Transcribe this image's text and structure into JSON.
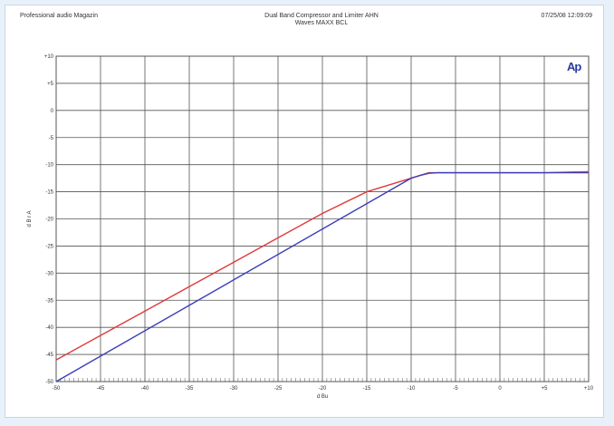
{
  "header": {
    "left": "Professional audio Magazin",
    "center_line1": "Dual Band Compressor and Limiter AHN",
    "center_line2": "Waves MAXX BCL",
    "right": "07/25/08 12:09:09",
    "logo": "Ap"
  },
  "colors": {
    "background": "#e8f1f9",
    "grid": "#555555",
    "series_red": "#e03a3a",
    "series_blue": "#3b3db8"
  },
  "chart_data": {
    "type": "line",
    "title": "Dual Band Compressor and Limiter AHN",
    "subtitle": "Waves MAXX BCL",
    "xlabel": "d Bu",
    "ylabel": "d B r A",
    "xlim": [
      -50,
      10
    ],
    "ylim": [
      -50,
      10
    ],
    "x_ticks": [
      "-50",
      "-45",
      "-40",
      "-35",
      "-30",
      "-25",
      "-20",
      "-15",
      "-10",
      "-5",
      "0",
      "+5",
      "+10"
    ],
    "y_ticks": [
      "+10",
      "+5",
      "0",
      "-5",
      "-10",
      "-15",
      "-20",
      "-25",
      "-30",
      "-35",
      "-40",
      "-45",
      "-50"
    ],
    "grid": true,
    "series": [
      {
        "color": "#e03a3a",
        "x": [
          -50,
          -45,
          -40,
          -35,
          -30,
          -25,
          -20,
          -15,
          -12,
          -10,
          -9,
          -8,
          -7,
          0,
          5,
          10
        ],
        "y": [
          -46,
          -41.5,
          -37,
          -32.5,
          -28,
          -23.5,
          -19,
          -15,
          -13.5,
          -12.5,
          -12,
          -11.5,
          -11.5,
          -11.5,
          -11.5,
          -11.3
        ]
      },
      {
        "color": "#3b3db8",
        "x": [
          -50,
          -10,
          -9,
          -8,
          -7,
          0,
          5,
          10
        ],
        "y": [
          -50,
          -12.5,
          -12,
          -11.6,
          -11.5,
          -11.5,
          -11.5,
          -11.5
        ]
      }
    ]
  }
}
